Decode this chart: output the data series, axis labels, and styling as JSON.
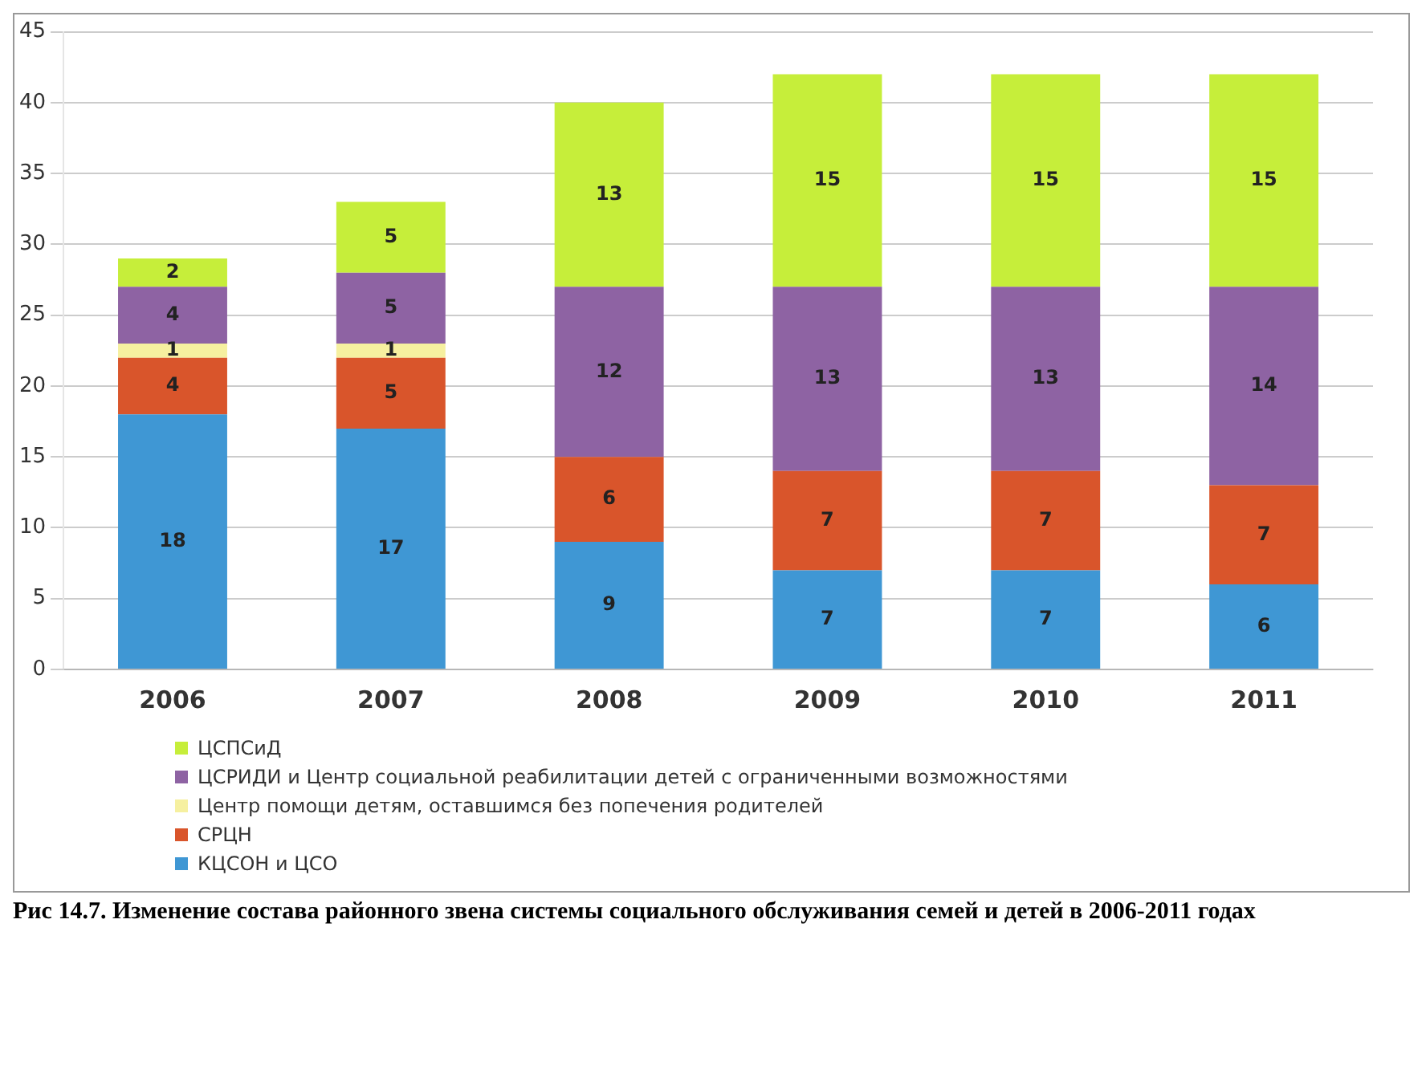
{
  "chart_data": {
    "type": "bar",
    "stacked": true,
    "categories": [
      "2006",
      "2007",
      "2008",
      "2009",
      "2010",
      "2011"
    ],
    "series": [
      {
        "name": "КЦСОН и ЦСО",
        "color": "#3f97d4",
        "values": [
          18,
          17,
          9,
          7,
          7,
          6
        ],
        "value_labels": [
          "18",
          "17",
          "9",
          "7",
          "7",
          "6"
        ]
      },
      {
        "name": "СРЦН",
        "color": "#d9552b",
        "values": [
          4,
          5,
          6,
          7,
          7,
          7
        ],
        "value_labels": [
          "4",
          "5",
          "6",
          "7",
          "7",
          "7"
        ]
      },
      {
        "name": "Центр помощи детям, оставшимся без попечения родителей",
        "color": "#f6f0a0",
        "values": [
          1,
          1,
          0,
          0,
          0,
          0
        ],
        "value_labels": [
          "1",
          "1",
          null,
          null,
          null,
          null
        ]
      },
      {
        "name": "ЦСРИДИ и Центр социальной реабилитации детей с ограниченными возможностями",
        "color": "#8e63a3",
        "values": [
          4,
          5,
          12,
          13,
          13,
          14
        ],
        "value_labels": [
          "4",
          "5",
          "12",
          "13",
          "13",
          "14"
        ]
      },
      {
        "name": "ЦСПСиД",
        "color": "#c6ee3a",
        "values": [
          2,
          5,
          13,
          15,
          15,
          15
        ],
        "value_labels": [
          "2",
          "5",
          "13",
          "15",
          "15",
          "15"
        ]
      }
    ],
    "ylim": [
      0,
      45
    ],
    "yticks": [
      0,
      5,
      10,
      15,
      20,
      25,
      30,
      35,
      40,
      45
    ],
    "grid": "y",
    "legend": "bottom",
    "annotations": [
      "Рис 14.7. Изменение состава районного звена системы социального обслуживания семей и детей в 2006-2011 годах"
    ]
  }
}
